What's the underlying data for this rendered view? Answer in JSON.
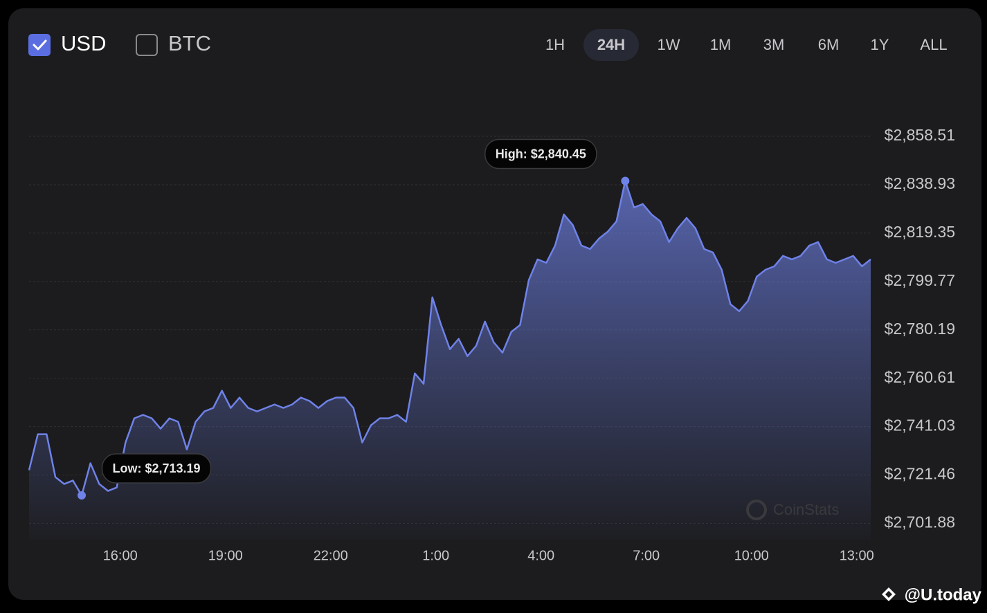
{
  "controls": {
    "currencies": [
      {
        "label": "USD",
        "checked": true
      },
      {
        "label": "BTC",
        "checked": false
      }
    ],
    "ranges": [
      "1H",
      "24H",
      "1W",
      "1M",
      "3M",
      "6M",
      "1Y",
      "ALL"
    ],
    "active_range": "24H"
  },
  "watermark": "CoinStats",
  "credit": "@U.today",
  "chart_data": {
    "type": "line",
    "color": "#6f82e8",
    "area": true,
    "grid": true,
    "x": [
      13.4,
      13.65,
      13.9,
      14.15,
      14.4,
      14.65,
      14.9,
      15.15,
      15.4,
      15.65,
      15.9,
      16.15,
      16.4,
      16.65,
      16.9,
      17.15,
      17.4,
      17.65,
      17.9,
      18.15,
      18.4,
      18.65,
      18.9,
      19.15,
      19.4,
      19.65,
      19.9,
      20.15,
      20.4,
      20.65,
      20.9,
      21.15,
      21.4,
      21.65,
      21.9,
      22.15,
      22.4,
      22.65,
      22.9,
      23.15,
      23.4,
      23.65,
      23.9,
      24.15,
      24.4,
      24.65,
      24.9,
      25.15,
      25.4,
      25.65,
      25.9,
      26.15,
      26.4,
      26.65,
      26.9,
      27.15,
      27.4,
      27.65,
      27.9,
      28.15,
      28.4,
      28.65,
      28.9,
      29.15,
      29.4,
      29.65,
      29.9,
      30.15,
      30.4,
      30.65,
      30.9,
      31.15,
      31.4,
      31.65,
      31.9,
      32.15,
      32.4,
      32.65,
      32.9,
      33.15,
      33.4,
      33.65,
      33.9,
      34.15,
      34.4,
      34.65,
      34.9,
      35.15,
      35.4,
      35.65,
      35.9,
      36.15,
      36.4,
      36.65,
      36.9,
      37.15,
      37.4
    ],
    "values": [
      2723.41,
      2737.95,
      2737.95,
      2720.61,
      2717.81,
      2719.21,
      2713.19,
      2726.2,
      2717.81,
      2715.01,
      2716.41,
      2734.59,
      2744.38,
      2745.78,
      2744.38,
      2740.19,
      2744.38,
      2742.99,
      2731.8,
      2742.99,
      2747.18,
      2748.58,
      2755.57,
      2748.58,
      2752.78,
      2748.58,
      2747.18,
      2748.58,
      2749.98,
      2748.58,
      2749.98,
      2752.78,
      2751.38,
      2748.58,
      2751.38,
      2752.78,
      2752.78,
      2748.58,
      2734.59,
      2741.59,
      2744.38,
      2744.38,
      2745.78,
      2742.99,
      2762.57,
      2758.37,
      2793.34,
      2782.15,
      2772.36,
      2776.55,
      2769.56,
      2773.75,
      2783.54,
      2775.15,
      2770.96,
      2779.35,
      2782.15,
      2800.33,
      2808.72,
      2807.32,
      2814.31,
      2826.9,
      2822.71,
      2814.31,
      2812.92,
      2817.11,
      2819.91,
      2824.1,
      2840.45,
      2829.7,
      2831.1,
      2826.9,
      2824.1,
      2815.71,
      2821.31,
      2825.5,
      2821.31,
      2812.92,
      2811.52,
      2804.52,
      2790.54,
      2787.74,
      2791.94,
      2801.73,
      2804.52,
      2805.92,
      2810.12,
      2808.72,
      2810.12,
      2814.31,
      2815.71,
      2808.72,
      2807.32,
      2808.72,
      2810.12,
      2805.92,
      2808.72
    ],
    "xlim": [
      13.4,
      37.4
    ],
    "xticks": [
      {
        "value": 16,
        "label": "16:00"
      },
      {
        "value": 19,
        "label": "19:00"
      },
      {
        "value": 22,
        "label": "22:00"
      },
      {
        "value": 25,
        "label": "1:00"
      },
      {
        "value": 28,
        "label": "4:00"
      },
      {
        "value": 31,
        "label": "7:00"
      },
      {
        "value": 34,
        "label": "10:00"
      },
      {
        "value": 37,
        "label": "13:00"
      }
    ],
    "ylim": [
      2695,
      2863
    ],
    "yticks": [
      {
        "value": 2701.88,
        "label": "$2,701.88"
      },
      {
        "value": 2721.46,
        "label": "$2,721.46"
      },
      {
        "value": 2741.03,
        "label": "$2,741.03"
      },
      {
        "value": 2760.61,
        "label": "$2,760.61"
      },
      {
        "value": 2780.19,
        "label": "$2,780.19"
      },
      {
        "value": 2799.77,
        "label": "$2,799.77"
      },
      {
        "value": 2819.35,
        "label": "$2,819.35"
      },
      {
        "value": 2838.93,
        "label": "$2,838.93"
      },
      {
        "value": 2858.51,
        "label": "$2,858.51"
      }
    ],
    "annotations": [
      {
        "text": "High: $2,840.45",
        "x": 30.4,
        "value": 2840.45
      },
      {
        "text": "Low: $2,713.19",
        "x": 14.9,
        "value": 2713.19
      }
    ]
  }
}
